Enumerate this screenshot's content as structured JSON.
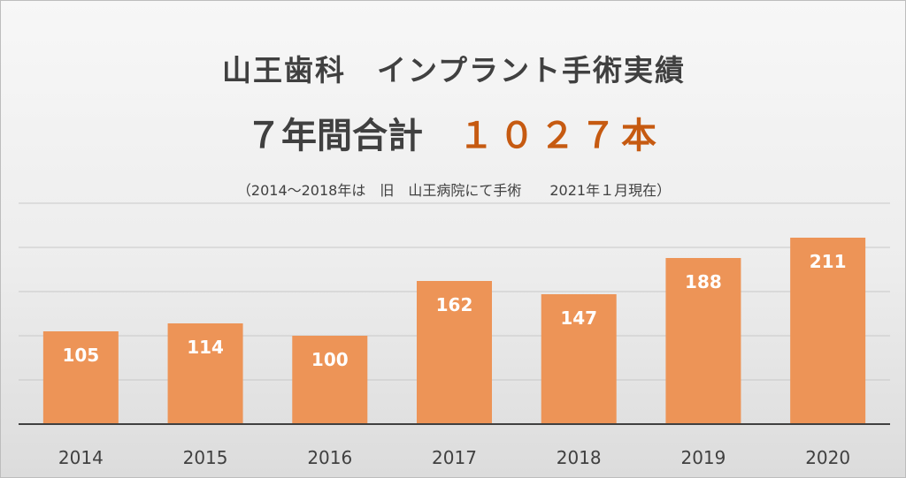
{
  "header": {
    "title": "山王歯科　インプラント手術実績",
    "total_label": "７年間合計　",
    "total_value": "１０２７本",
    "note": "（2014～2018年は　旧　山王病院にて手術　　2021年１月現在）"
  },
  "colors": {
    "bar": "#ed9457",
    "total_accent": "#c65a11",
    "text": "#404040",
    "gridline": "#c8c8c8",
    "axis": "#404040"
  },
  "chart_data": {
    "type": "bar",
    "title": "山王歯科　インプラント手術実績",
    "categories": [
      "2014",
      "2015",
      "2016",
      "2017",
      "2018",
      "2019",
      "2020"
    ],
    "values": [
      105,
      114,
      100,
      162,
      147,
      188,
      211
    ],
    "value_labels": [
      "105",
      "114",
      "100",
      "162",
      "147",
      "188",
      "211"
    ],
    "xlabel": "",
    "ylabel": "",
    "ylim": [
      0,
      250
    ],
    "grid": true,
    "legend": "none"
  }
}
